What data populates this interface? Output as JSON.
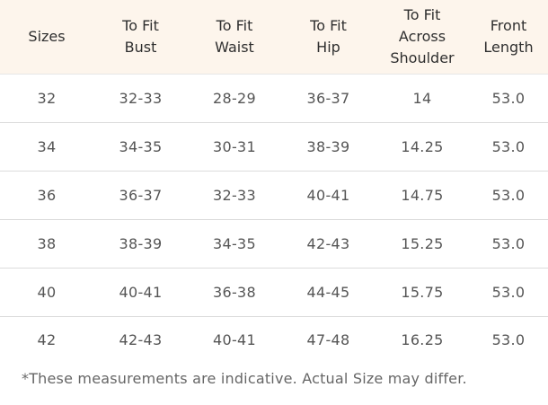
{
  "size_chart": {
    "headers": [
      "Sizes",
      "To Fit\nBust",
      "To Fit\nWaist",
      "To Fit\nHip",
      "To Fit\nAcross\nShoulder",
      "Front\nLength"
    ],
    "rows": [
      [
        "32",
        "32-33",
        "28-29",
        "36-37",
        "14",
        "53.0"
      ],
      [
        "34",
        "34-35",
        "30-31",
        "38-39",
        "14.25",
        "53.0"
      ],
      [
        "36",
        "36-37",
        "32-33",
        "40-41",
        "14.75",
        "53.0"
      ],
      [
        "38",
        "38-39",
        "34-35",
        "42-43",
        "15.25",
        "53.0"
      ],
      [
        "40",
        "40-41",
        "36-38",
        "44-45",
        "15.75",
        "53.0"
      ],
      [
        "42",
        "42-43",
        "40-41",
        "47-48",
        "16.25",
        "53.0"
      ]
    ],
    "note": "*These measurements are indicative. Actual Size may differ."
  },
  "colors": {
    "header_background": "#fdf5ec",
    "row_divider": "#dcdcdc",
    "text": "#555555"
  }
}
